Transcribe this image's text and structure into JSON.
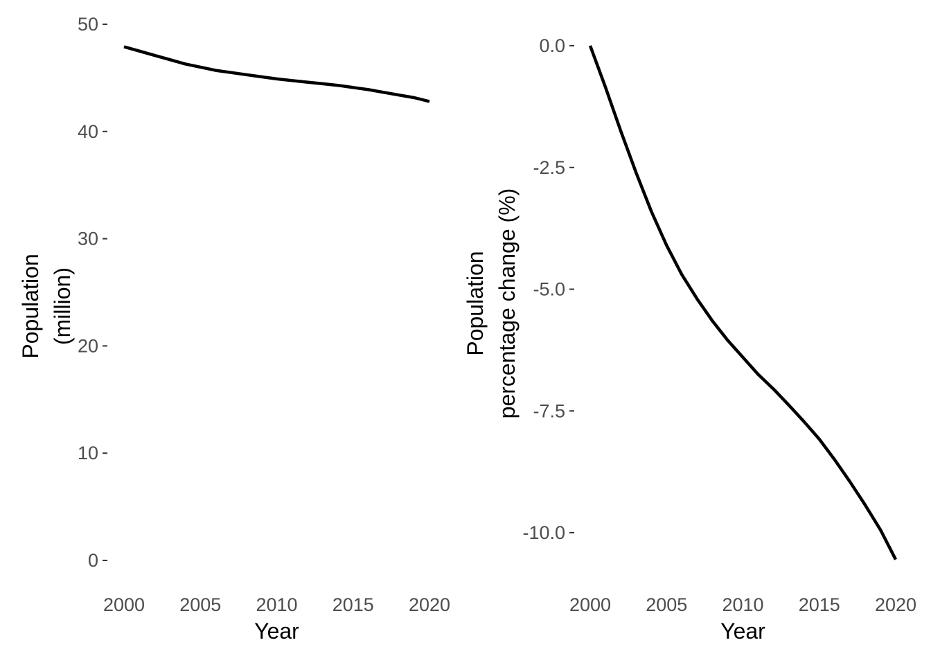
{
  "chart_data": [
    {
      "type": "line",
      "xlabel": "Year",
      "ylabel_lines": [
        "Population",
        "(million)"
      ],
      "xlim": [
        2000,
        2020
      ],
      "ylim": [
        0,
        50
      ],
      "x_ticks": [
        2000,
        2005,
        2010,
        2015,
        2020
      ],
      "x_tick_labels": [
        "2000",
        "2005",
        "2010",
        "2015",
        "2020"
      ],
      "y_ticks": [
        0,
        10,
        20,
        30,
        40,
        50
      ],
      "y_tick_labels": [
        "0",
        "10",
        "20",
        "30",
        "40",
        "50"
      ],
      "grid": false,
      "series": [
        {
          "x": [
            2000,
            2001,
            2002,
            2003,
            2004,
            2005,
            2006,
            2007,
            2008,
            2009,
            2010,
            2011,
            2012,
            2013,
            2014,
            2015,
            2016,
            2017,
            2018,
            2019,
            2020
          ],
          "y": [
            47.9,
            47.5,
            47.1,
            46.7,
            46.3,
            46.0,
            45.7,
            45.5,
            45.3,
            45.1,
            44.9,
            44.75,
            44.6,
            44.45,
            44.3,
            44.1,
            43.9,
            43.65,
            43.4,
            43.15,
            42.8
          ]
        }
      ]
    },
    {
      "type": "line",
      "xlabel": "Year",
      "ylabel_lines": [
        "Population",
        "percentage change (%)"
      ],
      "xlim": [
        2000,
        2020
      ],
      "ylim": [
        -10.6,
        0
      ],
      "x_ticks": [
        2000,
        2005,
        2010,
        2015,
        2020
      ],
      "x_tick_labels": [
        "2000",
        "2005",
        "2010",
        "2015",
        "2020"
      ],
      "y_ticks": [
        0,
        -2.5,
        -5.0,
        -7.5,
        -10.0
      ],
      "y_tick_labels": [
        "0.0",
        "-2.5",
        "-5.0",
        "-7.5",
        "-10.0"
      ],
      "grid": false,
      "series": [
        {
          "x": [
            2000,
            2001,
            2002,
            2003,
            2004,
            2005,
            2006,
            2007,
            2008,
            2009,
            2010,
            2011,
            2012,
            2013,
            2014,
            2015,
            2016,
            2017,
            2018,
            2019,
            2020
          ],
          "y": [
            0.0,
            -0.85,
            -1.75,
            -2.6,
            -3.4,
            -4.1,
            -4.7,
            -5.2,
            -5.65,
            -6.05,
            -6.4,
            -6.75,
            -7.05,
            -7.38,
            -7.72,
            -8.08,
            -8.5,
            -8.95,
            -9.43,
            -9.94,
            -10.55
          ]
        }
      ]
    }
  ]
}
